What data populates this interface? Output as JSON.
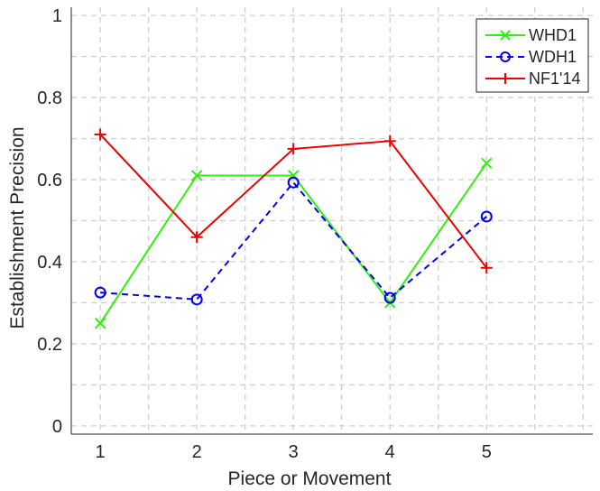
{
  "chart_data": {
    "type": "line",
    "xlabel": "Piece or Movement",
    "ylabel": "Establishment Precision",
    "xlim": [
      0.7,
      6.1
    ],
    "ylim": [
      -0.02,
      1.02
    ],
    "xticks": [
      1,
      2,
      3,
      4,
      5
    ],
    "yticks": [
      0,
      0.2,
      0.4,
      0.6,
      0.8,
      1
    ],
    "ytick_labels": [
      "0",
      "0.2",
      "0.4",
      "0.6",
      "0.8",
      "1"
    ],
    "x_grid": [
      1,
      1.5,
      2,
      2.5,
      3,
      3.5,
      4,
      4.5,
      5,
      5.5,
      6
    ],
    "y_grid": [
      0,
      0.1,
      0.2,
      0.3,
      0.4,
      0.5,
      0.6,
      0.7,
      0.8,
      0.9,
      1
    ],
    "grid": true,
    "legend_position": "top-right",
    "series": [
      {
        "name": "WHD1",
        "x": [
          1,
          2,
          3,
          4,
          5
        ],
        "values": [
          0.25,
          0.61,
          0.61,
          0.3,
          0.64
        ],
        "color": "#33ee11",
        "line": "solid",
        "marker": "x"
      },
      {
        "name": "WDH1",
        "x": [
          1,
          2,
          3,
          4,
          5
        ],
        "values": [
          0.325,
          0.308,
          0.593,
          0.312,
          0.51
        ],
        "color": "#0000ee",
        "line": "dashed",
        "marker": "o"
      },
      {
        "name": "NF1'14",
        "x": [
          1,
          2,
          3,
          4,
          5
        ],
        "values": [
          0.71,
          0.46,
          0.675,
          0.694,
          0.385
        ],
        "color": "#ee0000",
        "line": "solid",
        "marker": "+"
      }
    ]
  }
}
